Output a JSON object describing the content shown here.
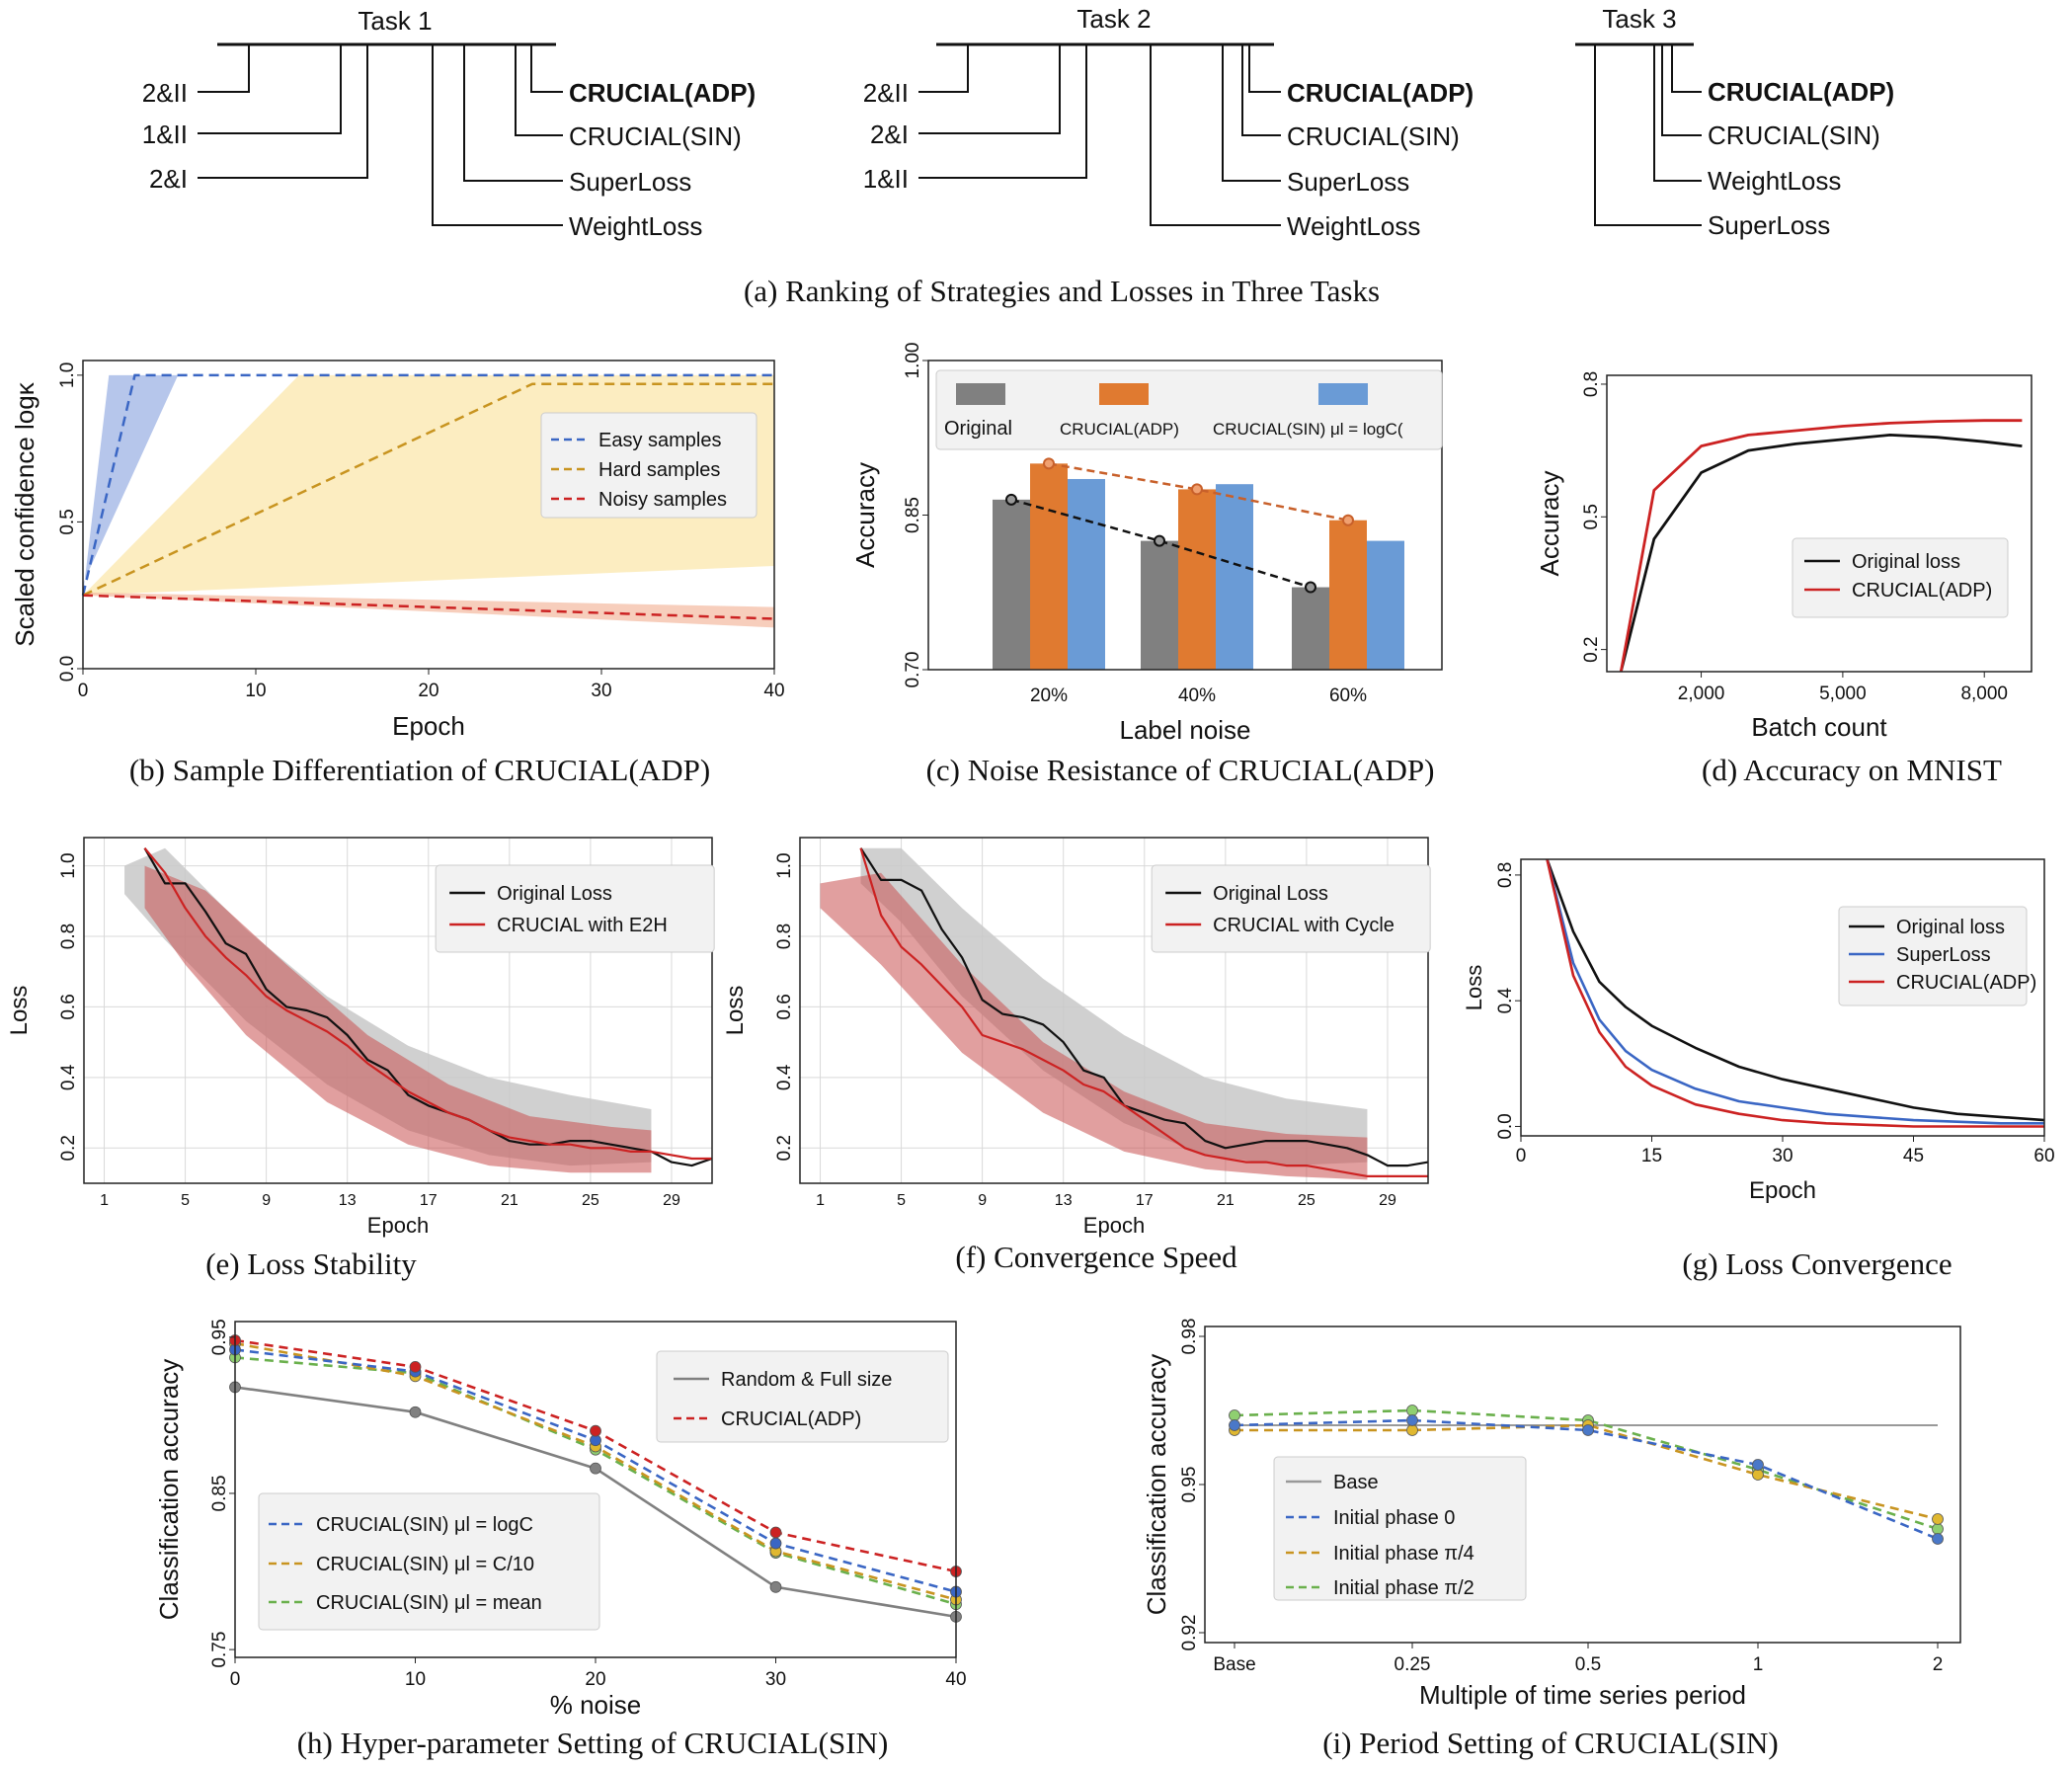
{
  "colors": {
    "black": "#111111",
    "red": "#cc2222",
    "blue": "#3a66c4",
    "orange": "#e07a30",
    "lightblue": "#6a9bd6",
    "gray": "#7a7a7a",
    "gold": "#c89420",
    "green": "#6ab04c"
  },
  "captions": {
    "a": "(a) Ranking of Strategies and Losses in Three Tasks",
    "b": "(b) Sample Differentiation of CRUCIAL(ADP)",
    "c": "(c) Noise Resistance of CRUCIAL(ADP)",
    "d": "(d) Accuracy on MNIST",
    "e": "(e) Loss Stability",
    "f": "(f) Convergence Speed",
    "g": "(g) Loss Convergence",
    "h": "(h) Hyper-parameter Setting of CRUCIAL(SIN)",
    "i": "(i) Period Setting of CRUCIAL(SIN)"
  },
  "ranking": {
    "tasks": [
      {
        "title": "Task 1",
        "left": [
          "2&II",
          "1&II",
          "2&I"
        ],
        "right": [
          "CRUCIAL(ADP)",
          "CRUCIAL(SIN)",
          "SuperLoss",
          "WeightLoss"
        ]
      },
      {
        "title": "Task 2",
        "left": [
          "2&II",
          "2&I",
          "1&II"
        ],
        "right": [
          "CRUCIAL(ADP)",
          "CRUCIAL(SIN)",
          "SuperLoss",
          "WeightLoss"
        ]
      },
      {
        "title": "Task 3",
        "left": [],
        "right": [
          "CRUCIAL(ADP)",
          "CRUCIAL(SIN)",
          "WeightLoss",
          "SuperLoss"
        ]
      }
    ]
  },
  "chart_data": [
    {
      "id": "b",
      "type": "line",
      "xlabel": "Epoch",
      "ylabel": "Scaled confidence logκ",
      "xlim": [
        0,
        40
      ],
      "ylim": [
        0,
        1.05
      ],
      "xticks": [
        "0",
        "10",
        "20",
        "30",
        "40"
      ],
      "yticks": [
        "0.0",
        "0.5",
        "1.0"
      ],
      "series": [
        {
          "name": "Easy samples",
          "x": [
            0,
            3,
            40
          ],
          "y": [
            0.25,
            1.0,
            1.0
          ]
        },
        {
          "name": "Hard samples",
          "x": [
            0,
            26,
            40
          ],
          "y": [
            0.25,
            0.97,
            0.97
          ]
        },
        {
          "name": "Noisy samples",
          "x": [
            0,
            40
          ],
          "y": [
            0.25,
            0.17
          ]
        }
      ]
    },
    {
      "id": "c",
      "type": "bar",
      "xlabel": "Label noise",
      "ylabel": "Accuracy",
      "categories": [
        "20%",
        "40%",
        "60%"
      ],
      "ylim": [
        0.7,
        1.0
      ],
      "yticks": [
        "0.70",
        "0.85",
        "1.00"
      ],
      "legend": [
        "Original",
        "CRUCIAL(ADP)",
        "CRUCIAL(SIN) μl = logC"
      ],
      "series": [
        {
          "name": "Original",
          "values": [
            0.865,
            0.825,
            0.78
          ]
        },
        {
          "name": "CRUCIAL(ADP)",
          "values": [
            0.9,
            0.875,
            0.845
          ]
        },
        {
          "name": "CRUCIAL(SIN)",
          "values": [
            0.885,
            0.88,
            0.825
          ]
        }
      ]
    },
    {
      "id": "d",
      "type": "line",
      "xlabel": "Batch count",
      "ylabel": "Accuracy",
      "xlim": [
        0,
        9000
      ],
      "ylim": [
        0.15,
        0.82
      ],
      "xticks": [
        "2,000",
        "5,000",
        "8,000"
      ],
      "yticks": [
        "0.2",
        "0.5",
        "0.8"
      ],
      "series": [
        {
          "name": "Original loss",
          "x": [
            300,
            1000,
            2000,
            3000,
            4000,
            5000,
            6000,
            7000,
            8000,
            8800
          ],
          "y": [
            0.15,
            0.45,
            0.6,
            0.65,
            0.665,
            0.675,
            0.685,
            0.68,
            0.67,
            0.66
          ]
        },
        {
          "name": "CRUCIAL(ADP)",
          "x": [
            300,
            1000,
            2000,
            3000,
            4000,
            5000,
            6000,
            7000,
            8000,
            8800
          ],
          "y": [
            0.15,
            0.56,
            0.66,
            0.685,
            0.695,
            0.705,
            0.712,
            0.716,
            0.718,
            0.718
          ]
        }
      ]
    },
    {
      "id": "e",
      "type": "line",
      "xlabel": "Epoch",
      "ylabel": "Loss",
      "xlim": [
        0,
        31
      ],
      "ylim": [
        0.1,
        1.08
      ],
      "xticks": [
        "1",
        "5",
        "9",
        "13",
        "17",
        "21",
        "25",
        "29"
      ],
      "yticks": [
        "0.2",
        "0.4",
        "0.6",
        "0.8",
        "1.0"
      ],
      "series": [
        {
          "name": "Original Loss",
          "x": [
            3,
            4,
            5,
            6,
            7,
            8,
            9,
            10,
            11,
            12,
            13,
            14,
            15,
            16,
            17,
            18,
            19,
            20,
            21,
            22,
            23,
            24,
            25,
            26,
            27,
            28,
            29,
            30,
            31
          ],
          "y": [
            1.05,
            0.95,
            0.95,
            0.87,
            0.78,
            0.75,
            0.65,
            0.6,
            0.59,
            0.57,
            0.52,
            0.45,
            0.42,
            0.35,
            0.32,
            0.3,
            0.28,
            0.25,
            0.22,
            0.21,
            0.21,
            0.22,
            0.22,
            0.21,
            0.2,
            0.19,
            0.16,
            0.15,
            0.17
          ]
        },
        {
          "name": "CRUCIAL with E2H",
          "x": [
            3,
            4,
            5,
            6,
            7,
            8,
            9,
            10,
            11,
            12,
            13,
            14,
            15,
            16,
            17,
            18,
            19,
            20,
            21,
            22,
            23,
            24,
            25,
            26,
            27,
            28,
            29,
            30,
            31
          ],
          "y": [
            1.05,
            0.98,
            0.88,
            0.8,
            0.74,
            0.69,
            0.63,
            0.59,
            0.56,
            0.53,
            0.49,
            0.44,
            0.4,
            0.36,
            0.33,
            0.3,
            0.28,
            0.25,
            0.23,
            0.22,
            0.21,
            0.21,
            0.2,
            0.2,
            0.19,
            0.19,
            0.18,
            0.17,
            0.17
          ]
        }
      ]
    },
    {
      "id": "f",
      "type": "line",
      "xlabel": "Epoch",
      "ylabel": "Loss",
      "xlim": [
        0,
        31
      ],
      "ylim": [
        0.1,
        1.08
      ],
      "xticks": [
        "1",
        "5",
        "9",
        "13",
        "17",
        "21",
        "25",
        "29"
      ],
      "yticks": [
        "0.2",
        "0.4",
        "0.6",
        "0.8",
        "1.0"
      ],
      "series": [
        {
          "name": "Original Loss",
          "x": [
            3,
            4,
            5,
            6,
            7,
            8,
            9,
            10,
            11,
            12,
            13,
            14,
            15,
            16,
            17,
            18,
            19,
            20,
            21,
            22,
            23,
            24,
            25,
            26,
            27,
            28,
            29,
            30,
            31
          ],
          "y": [
            1.05,
            0.96,
            0.96,
            0.93,
            0.82,
            0.74,
            0.62,
            0.58,
            0.57,
            0.55,
            0.5,
            0.42,
            0.4,
            0.32,
            0.3,
            0.28,
            0.27,
            0.22,
            0.2,
            0.21,
            0.22,
            0.22,
            0.22,
            0.21,
            0.2,
            0.18,
            0.15,
            0.15,
            0.16
          ]
        },
        {
          "name": "CRUCIAL with Cycle",
          "x": [
            3,
            4,
            5,
            6,
            7,
            8,
            9,
            10,
            11,
            12,
            13,
            14,
            15,
            16,
            17,
            18,
            19,
            20,
            21,
            22,
            23,
            24,
            25,
            26,
            27,
            28,
            29,
            30,
            31
          ],
          "y": [
            1.05,
            0.86,
            0.77,
            0.72,
            0.66,
            0.6,
            0.52,
            0.5,
            0.48,
            0.45,
            0.42,
            0.38,
            0.36,
            0.32,
            0.28,
            0.24,
            0.2,
            0.18,
            0.17,
            0.16,
            0.16,
            0.15,
            0.15,
            0.14,
            0.13,
            0.12,
            0.12,
            0.12,
            0.12
          ]
        }
      ]
    },
    {
      "id": "g",
      "type": "line",
      "xlabel": "Epoch",
      "ylabel": "Loss",
      "xlim": [
        0,
        60
      ],
      "ylim": [
        -0.03,
        0.85
      ],
      "xticks": [
        "0",
        "15",
        "30",
        "45",
        "60"
      ],
      "yticks": [
        "0.0",
        "0.4",
        "0.8"
      ],
      "series": [
        {
          "name": "Original loss",
          "x": [
            3,
            6,
            9,
            12,
            15,
            20,
            25,
            30,
            35,
            40,
            45,
            50,
            55,
            60
          ],
          "y": [
            0.85,
            0.62,
            0.46,
            0.38,
            0.32,
            0.25,
            0.19,
            0.15,
            0.12,
            0.09,
            0.06,
            0.04,
            0.03,
            0.02
          ]
        },
        {
          "name": "SuperLoss",
          "x": [
            3,
            6,
            9,
            12,
            15,
            20,
            25,
            30,
            35,
            40,
            45,
            50,
            55,
            60
          ],
          "y": [
            0.85,
            0.52,
            0.34,
            0.24,
            0.18,
            0.12,
            0.08,
            0.06,
            0.04,
            0.03,
            0.02,
            0.015,
            0.01,
            0.01
          ]
        },
        {
          "name": "CRUCIAL(ADP)",
          "x": [
            3,
            6,
            9,
            12,
            15,
            20,
            25,
            30,
            35,
            40,
            45,
            50,
            55,
            60
          ],
          "y": [
            0.85,
            0.48,
            0.3,
            0.19,
            0.13,
            0.07,
            0.04,
            0.02,
            0.01,
            0.005,
            0.0,
            0.0,
            0.0,
            0.0
          ]
        }
      ]
    },
    {
      "id": "h",
      "type": "line",
      "xlabel": "% noise",
      "ylabel": "Classification accuracy",
      "xlim": [
        0,
        40
      ],
      "ylim": [
        0.745,
        0.96
      ],
      "xticks": [
        "0",
        "10",
        "20",
        "30",
        "40"
      ],
      "yticks": [
        "0.75",
        "0.85",
        "0.95"
      ],
      "x": [
        0,
        10,
        20,
        30,
        40
      ],
      "series": [
        {
          "name": "Random & Full size",
          "values": [
            0.918,
            0.902,
            0.866,
            0.79,
            0.771
          ]
        },
        {
          "name": "CRUCIAL(ADP)",
          "values": [
            0.948,
            0.931,
            0.89,
            0.825,
            0.8
          ]
        },
        {
          "name": "CRUCIAL(SIN) μl = logC",
          "values": [
            0.942,
            0.928,
            0.884,
            0.818,
            0.787
          ]
        },
        {
          "name": "CRUCIAL(SIN) μl = C/10",
          "values": [
            0.946,
            0.925,
            0.88,
            0.813,
            0.782
          ]
        },
        {
          "name": "CRUCIAL(SIN) μl = mean",
          "values": [
            0.937,
            0.927,
            0.878,
            0.812,
            0.779
          ]
        }
      ]
    },
    {
      "id": "i",
      "type": "line",
      "xlabel": "Multiple of time series period",
      "ylabel": "Classification accuracy",
      "categories": [
        "Base",
        "0.25",
        "0.5",
        "1",
        "2"
      ],
      "ylim": [
        0.918,
        0.982
      ],
      "yticks": [
        "0.92",
        "0.95",
        "0.98"
      ],
      "series": [
        {
          "name": "Base",
          "values": [
            0.962,
            0.962,
            0.962,
            0.962,
            0.962
          ]
        },
        {
          "name": "Initial phase 0",
          "values": [
            0.962,
            0.963,
            0.961,
            0.954,
            0.939
          ]
        },
        {
          "name": "Initial phase π/4",
          "values": [
            0.961,
            0.961,
            0.962,
            0.952,
            0.943
          ]
        },
        {
          "name": "Initial phase π/2",
          "values": [
            0.964,
            0.965,
            0.963,
            0.953,
            0.941
          ]
        }
      ]
    }
  ],
  "legends": {
    "b": [
      "Easy samples",
      "Hard samples",
      "Noisy samples"
    ],
    "c": [
      "Original",
      "CRUCIAL(ADP)",
      "CRUCIAL(SIN) μl = logC("
    ],
    "d": [
      "Original loss",
      "CRUCIAL(ADP)"
    ],
    "e": [
      "Original Loss",
      "CRUCIAL  with E2H"
    ],
    "f": [
      "Original Loss",
      "CRUCIAL  with Cycle"
    ],
    "g": [
      "Original loss",
      "SuperLoss",
      "CRUCIAL(ADP)"
    ],
    "h1": [
      "Random & Full size",
      "CRUCIAL(ADP)"
    ],
    "h2": [
      "CRUCIAL(SIN) μl = logC",
      "CRUCIAL(SIN) μl = C/10",
      "CRUCIAL(SIN) μl = mean"
    ],
    "i": [
      "Base",
      "Initial phase 0",
      "Initial phase π/4",
      "Initial phase π/2"
    ]
  }
}
